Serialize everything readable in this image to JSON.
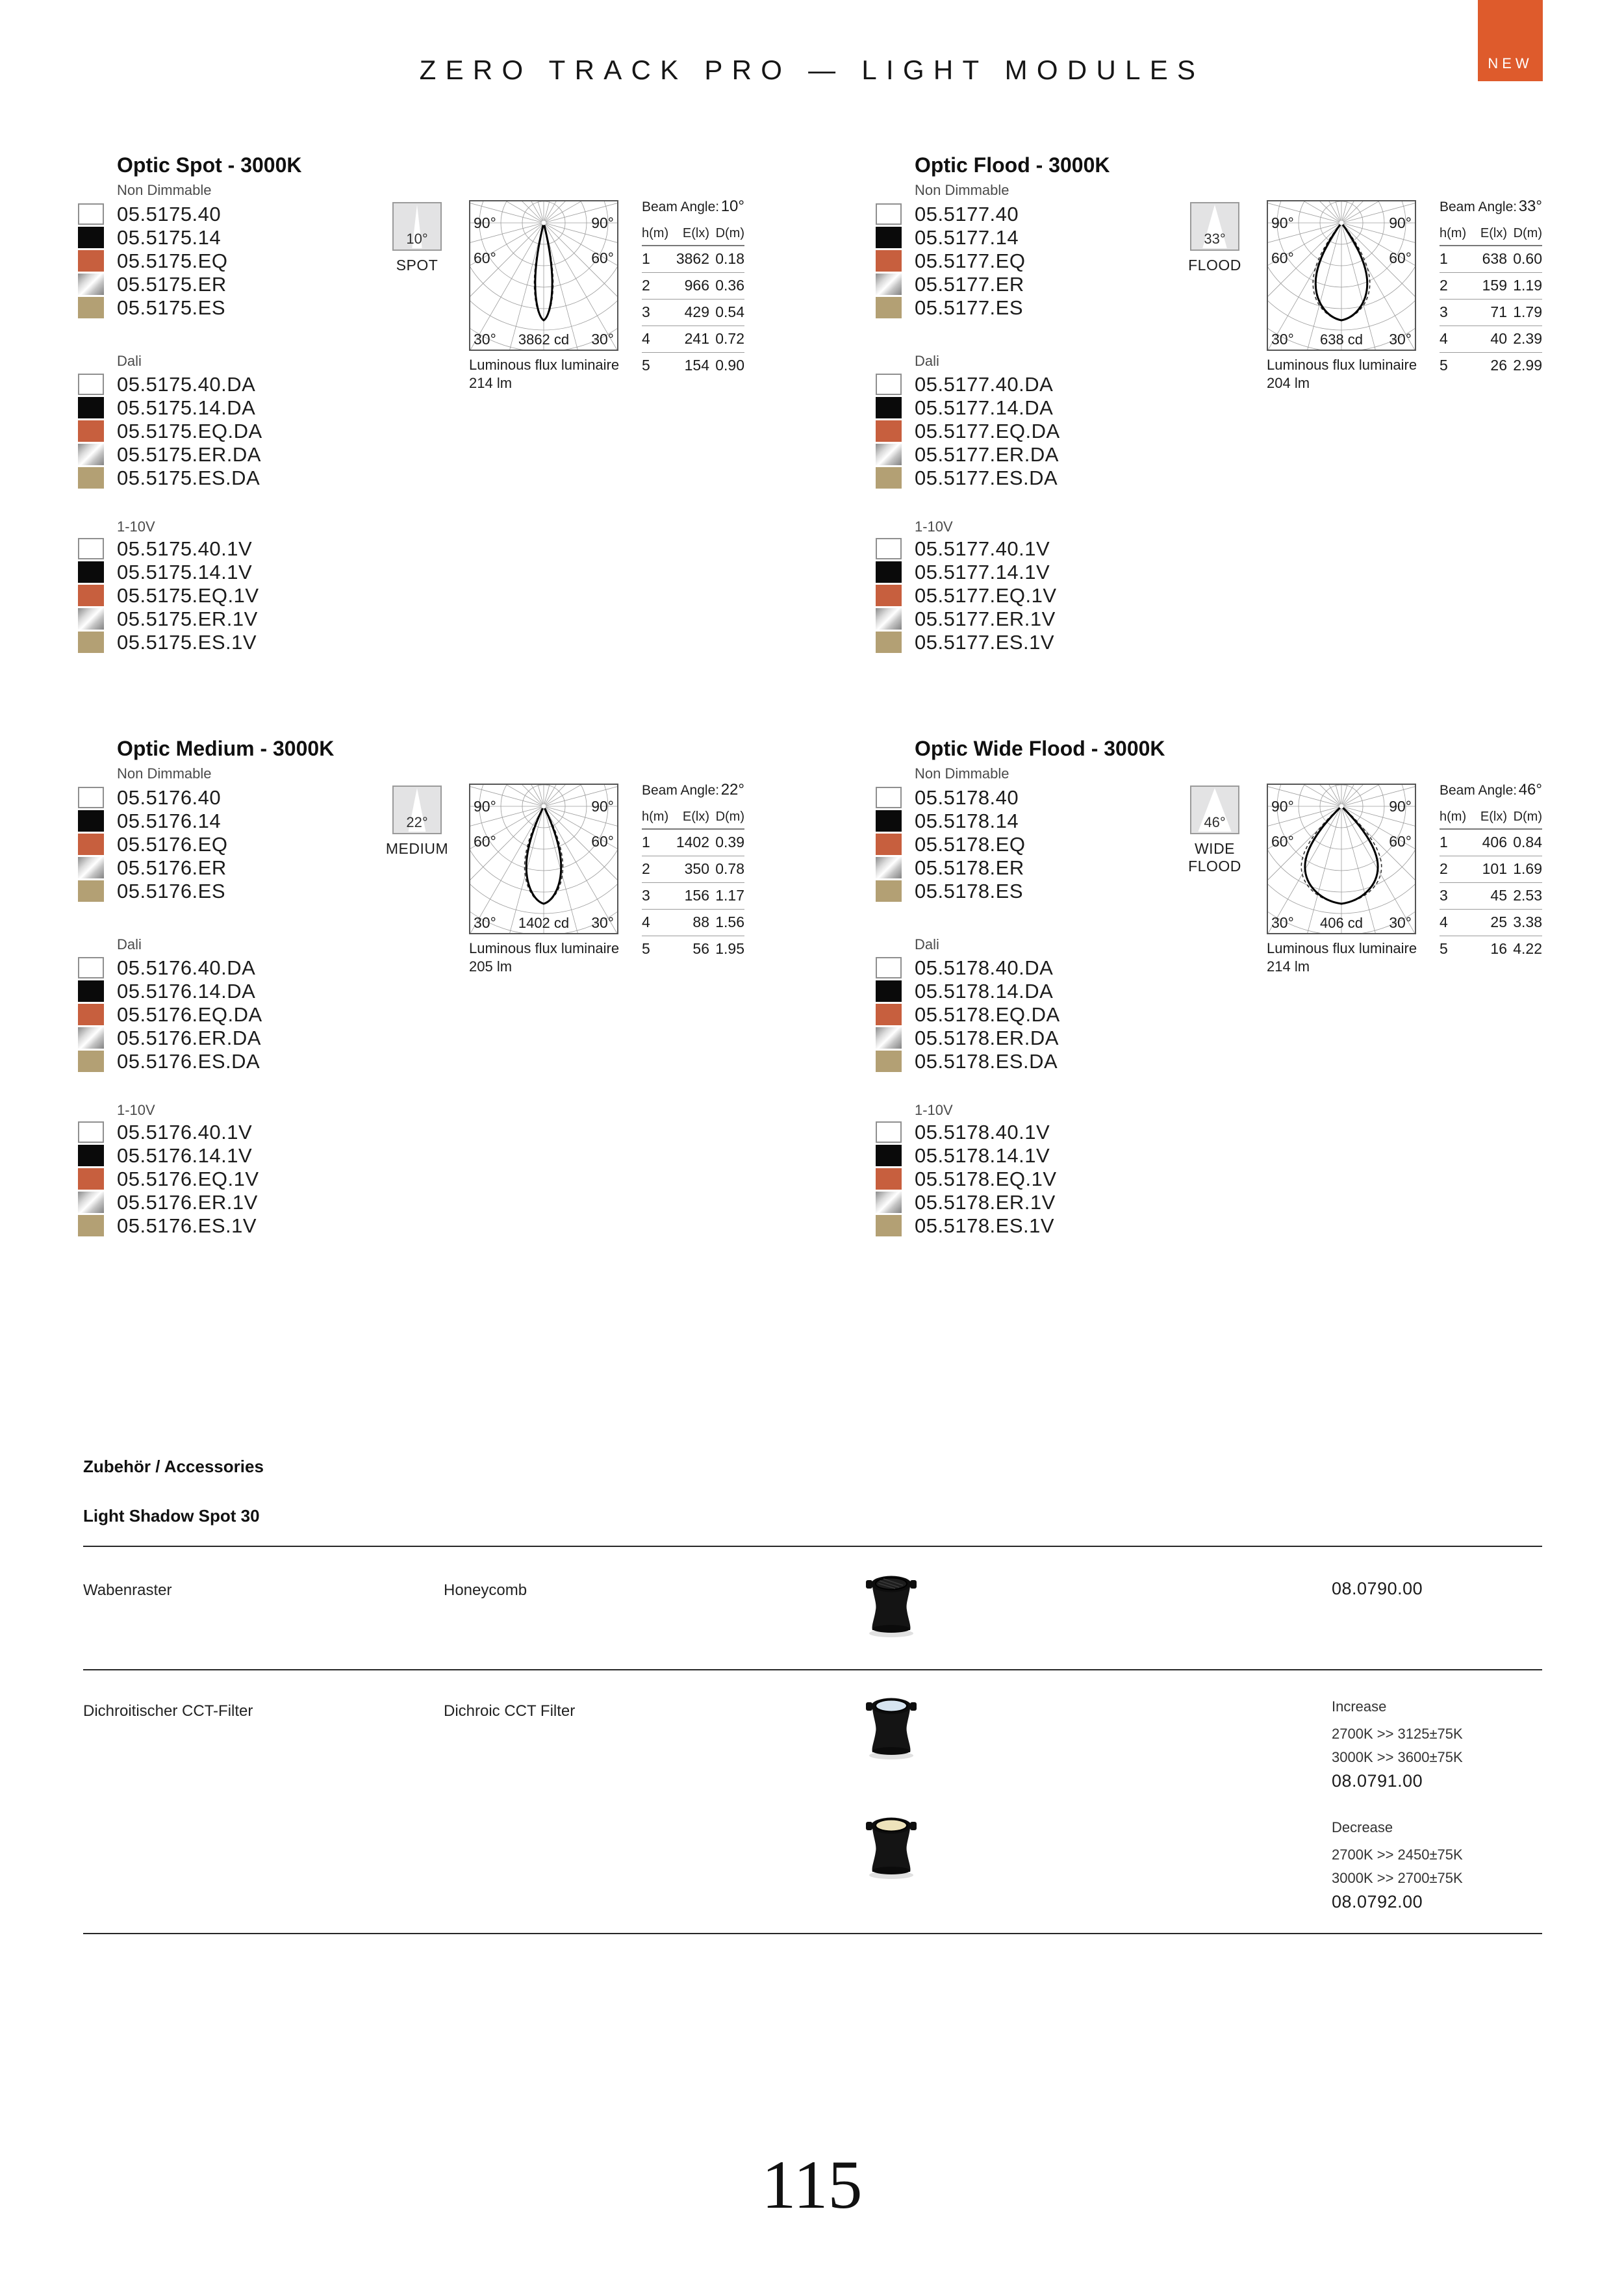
{
  "header": {
    "title": "ZERO TRACK PRO — LIGHT MODULES",
    "badge": "NEW"
  },
  "colors": {
    "accent": "#DE5B2C"
  },
  "finishes": [
    {
      "name": "white",
      "color": "#ffffff",
      "border": "#8f8f8f"
    },
    {
      "name": "black",
      "color": "#0a0a0a"
    },
    {
      "name": "orange",
      "color": "#c75f3e"
    },
    {
      "name": "chrome",
      "gradient": [
        "#8a8a8a",
        "#ffffff",
        "#828282"
      ]
    },
    {
      "name": "gold",
      "color": "#b3a074"
    }
  ],
  "sections": [
    {
      "title": "Optic Spot - 3000K",
      "icon": {
        "angle_label": "10°",
        "beam_deg": 10,
        "type_label": "SPOT"
      },
      "groups": [
        {
          "label": "Non Dimmable",
          "codes": [
            "05.5175.40",
            "05.5175.14",
            "05.5175.EQ",
            "05.5175.ER",
            "05.5175.ES"
          ]
        },
        {
          "label": "Dali",
          "codes": [
            "05.5175.40.DA",
            "05.5175.14.DA",
            "05.5175.EQ.DA",
            "05.5175.ER.DA",
            "05.5175.ES.DA"
          ]
        },
        {
          "label": "1-10V",
          "codes": [
            "05.5175.40.1V",
            "05.5175.14.1V",
            "05.5175.EQ.1V",
            "05.5175.ER.1V",
            "05.5175.ES.1V"
          ]
        }
      ],
      "diagram": {
        "angle_labels": [
          "90°",
          "60°",
          "30°"
        ],
        "cd_label": "3862 cd",
        "flux_label": "Luminous flux luminaire",
        "flux_value": "214 lm"
      },
      "table": {
        "beam_label": "Beam Angle:",
        "beam_value": "10°",
        "columns": [
          "h(m)",
          "E(lx)",
          "D(m)"
        ],
        "rows": [
          [
            "1",
            "3862",
            "0.18"
          ],
          [
            "2",
            "966",
            "0.36"
          ],
          [
            "3",
            "429",
            "0.54"
          ],
          [
            "4",
            "241",
            "0.72"
          ],
          [
            "5",
            "154",
            "0.90"
          ]
        ]
      }
    },
    {
      "title": "Optic Flood - 3000K",
      "icon": {
        "angle_label": "33°",
        "beam_deg": 33,
        "type_label": "FLOOD"
      },
      "groups": [
        {
          "label": "Non Dimmable",
          "codes": [
            "05.5177.40",
            "05.5177.14",
            "05.5177.EQ",
            "05.5177.ER",
            "05.5177.ES"
          ]
        },
        {
          "label": "Dali",
          "codes": [
            "05.5177.40.DA",
            "05.5177.14.DA",
            "05.5177.EQ.DA",
            "05.5177.ER.DA",
            "05.5177.ES.DA"
          ]
        },
        {
          "label": "1-10V",
          "codes": [
            "05.5177.40.1V",
            "05.5177.14.1V",
            "05.5177.EQ.1V",
            "05.5177.ER.1V",
            "05.5177.ES.1V"
          ]
        }
      ],
      "diagram": {
        "angle_labels": [
          "90°",
          "60°",
          "30°"
        ],
        "cd_label": "638 cd",
        "flux_label": "Luminous flux luminaire",
        "flux_value": "204 lm"
      },
      "table": {
        "beam_label": "Beam Angle:",
        "beam_value": "33°",
        "columns": [
          "h(m)",
          "E(lx)",
          "D(m)"
        ],
        "rows": [
          [
            "1",
            "638",
            "0.60"
          ],
          [
            "2",
            "159",
            "1.19"
          ],
          [
            "3",
            "71",
            "1.79"
          ],
          [
            "4",
            "40",
            "2.39"
          ],
          [
            "5",
            "26",
            "2.99"
          ]
        ]
      }
    },
    {
      "title": "Optic Medium - 3000K",
      "icon": {
        "angle_label": "22°",
        "beam_deg": 22,
        "type_label": "MEDIUM"
      },
      "groups": [
        {
          "label": "Non Dimmable",
          "codes": [
            "05.5176.40",
            "05.5176.14",
            "05.5176.EQ",
            "05.5176.ER",
            "05.5176.ES"
          ]
        },
        {
          "label": "Dali",
          "codes": [
            "05.5176.40.DA",
            "05.5176.14.DA",
            "05.5176.EQ.DA",
            "05.5176.ER.DA",
            "05.5176.ES.DA"
          ]
        },
        {
          "label": "1-10V",
          "codes": [
            "05.5176.40.1V",
            "05.5176.14.1V",
            "05.5176.EQ.1V",
            "05.5176.ER.1V",
            "05.5176.ES.1V"
          ]
        }
      ],
      "diagram": {
        "angle_labels": [
          "90°",
          "60°",
          "30°"
        ],
        "cd_label": "1402 cd",
        "flux_label": "Luminous flux luminaire",
        "flux_value": "205 lm"
      },
      "table": {
        "beam_label": "Beam Angle:",
        "beam_value": "22°",
        "columns": [
          "h(m)",
          "E(lx)",
          "D(m)"
        ],
        "rows": [
          [
            "1",
            "1402",
            "0.39"
          ],
          [
            "2",
            "350",
            "0.78"
          ],
          [
            "3",
            "156",
            "1.17"
          ],
          [
            "4",
            "88",
            "1.56"
          ],
          [
            "5",
            "56",
            "1.95"
          ]
        ]
      }
    },
    {
      "title": "Optic Wide Flood - 3000K",
      "icon": {
        "angle_label": "46°",
        "beam_deg": 46,
        "type_label": "WIDE FLOOD"
      },
      "groups": [
        {
          "label": "Non Dimmable",
          "codes": [
            "05.5178.40",
            "05.5178.14",
            "05.5178.EQ",
            "05.5178.ER",
            "05.5178.ES"
          ]
        },
        {
          "label": "Dali",
          "codes": [
            "05.5178.40.DA",
            "05.5178.14.DA",
            "05.5178.EQ.DA",
            "05.5178.ER.DA",
            "05.5178.ES.DA"
          ]
        },
        {
          "label": "1-10V",
          "codes": [
            "05.5178.40.1V",
            "05.5178.14.1V",
            "05.5178.EQ.1V",
            "05.5178.ER.1V",
            "05.5178.ES.1V"
          ]
        }
      ],
      "diagram": {
        "angle_labels": [
          "90°",
          "60°",
          "30°"
        ],
        "cd_label": "406 cd",
        "flux_label": "Luminous flux luminaire",
        "flux_value": "214 lm"
      },
      "table": {
        "beam_label": "Beam Angle:",
        "beam_value": "46°",
        "columns": [
          "h(m)",
          "E(lx)",
          "D(m)"
        ],
        "rows": [
          [
            "1",
            "406",
            "0.84"
          ],
          [
            "2",
            "101",
            "1.69"
          ],
          [
            "3",
            "45",
            "2.53"
          ],
          [
            "4",
            "25",
            "3.38"
          ],
          [
            "5",
            "16",
            "4.22"
          ]
        ]
      }
    }
  ],
  "accessories": {
    "title": "Zubehör / Accessories",
    "subtitle": "Light Shadow Spot 30",
    "items": [
      {
        "name_de": "Wabenraster",
        "name_en": "Honeycomb",
        "code": "08.0790.00",
        "lens": "honeycomb"
      },
      {
        "name_de": "Dichroitischer CCT-Filter",
        "name_en": "Dichroic CCT Filter",
        "variants": [
          {
            "label": "Increase",
            "lines": [
              "2700K >> 3125±75K",
              "3000K >> 3600±75K"
            ],
            "code": "08.0791.00",
            "lens": "cool"
          },
          {
            "label": "Decrease",
            "lines": [
              "2700K >> 2450±75K",
              "3000K >> 2700±75K"
            ],
            "code": "08.0792.00",
            "lens": "warm"
          }
        ]
      }
    ]
  },
  "page_number": "115"
}
